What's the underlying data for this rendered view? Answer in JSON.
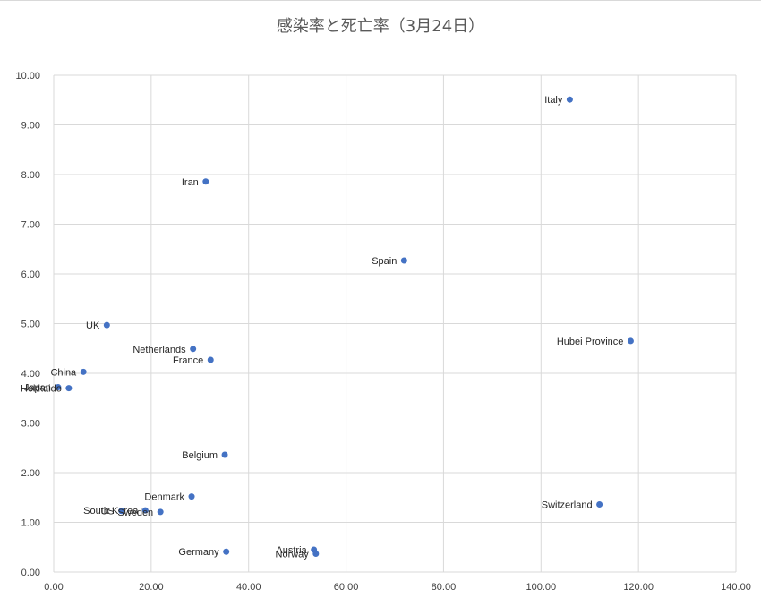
{
  "chart_data": {
    "type": "scatter",
    "title": "感染率と死亡率（3月24日）",
    "xlabel": "",
    "ylabel": "",
    "xlim": [
      0,
      140
    ],
    "ylim": [
      0,
      10
    ],
    "x_ticks": [
      "0.00",
      "20.00",
      "40.00",
      "60.00",
      "80.00",
      "100.00",
      "120.00",
      "140.00"
    ],
    "y_ticks": [
      "0.00",
      "1.00",
      "2.00",
      "3.00",
      "4.00",
      "5.00",
      "6.00",
      "7.00",
      "8.00",
      "9.00",
      "10.00"
    ],
    "grid": true,
    "marker_color": "#4472c4",
    "points": [
      {
        "label": "Italy",
        "x": 105.9,
        "y": 9.51
      },
      {
        "label": "Iran",
        "x": 31.2,
        "y": 7.86
      },
      {
        "label": "Spain",
        "x": 71.9,
        "y": 6.27
      },
      {
        "label": "UK",
        "x": 10.9,
        "y": 4.97
      },
      {
        "label": "Hubei Province",
        "x": 118.4,
        "y": 4.65
      },
      {
        "label": "Netherlands",
        "x": 28.6,
        "y": 4.49
      },
      {
        "label": "France",
        "x": 32.2,
        "y": 4.27
      },
      {
        "label": "China",
        "x": 6.1,
        "y": 4.03
      },
      {
        "label": "Japan",
        "x": 0.9,
        "y": 3.72
      },
      {
        "label": "Hokkaido",
        "x": 3.1,
        "y": 3.7
      },
      {
        "label": "Belgium",
        "x": 35.1,
        "y": 2.36
      },
      {
        "label": "Denmark",
        "x": 28.3,
        "y": 1.52
      },
      {
        "label": "Switzerland",
        "x": 112.0,
        "y": 1.36
      },
      {
        "label": "South Korea",
        "x": 18.8,
        "y": 1.24
      },
      {
        "label": "US",
        "x": 13.9,
        "y": 1.23
      },
      {
        "label": "Sweden",
        "x": 21.9,
        "y": 1.21
      },
      {
        "label": "Austria",
        "x": 53.4,
        "y": 0.45
      },
      {
        "label": "Germany",
        "x": 35.4,
        "y": 0.41
      },
      {
        "label": "Norway",
        "x": 53.8,
        "y": 0.37
      }
    ]
  }
}
